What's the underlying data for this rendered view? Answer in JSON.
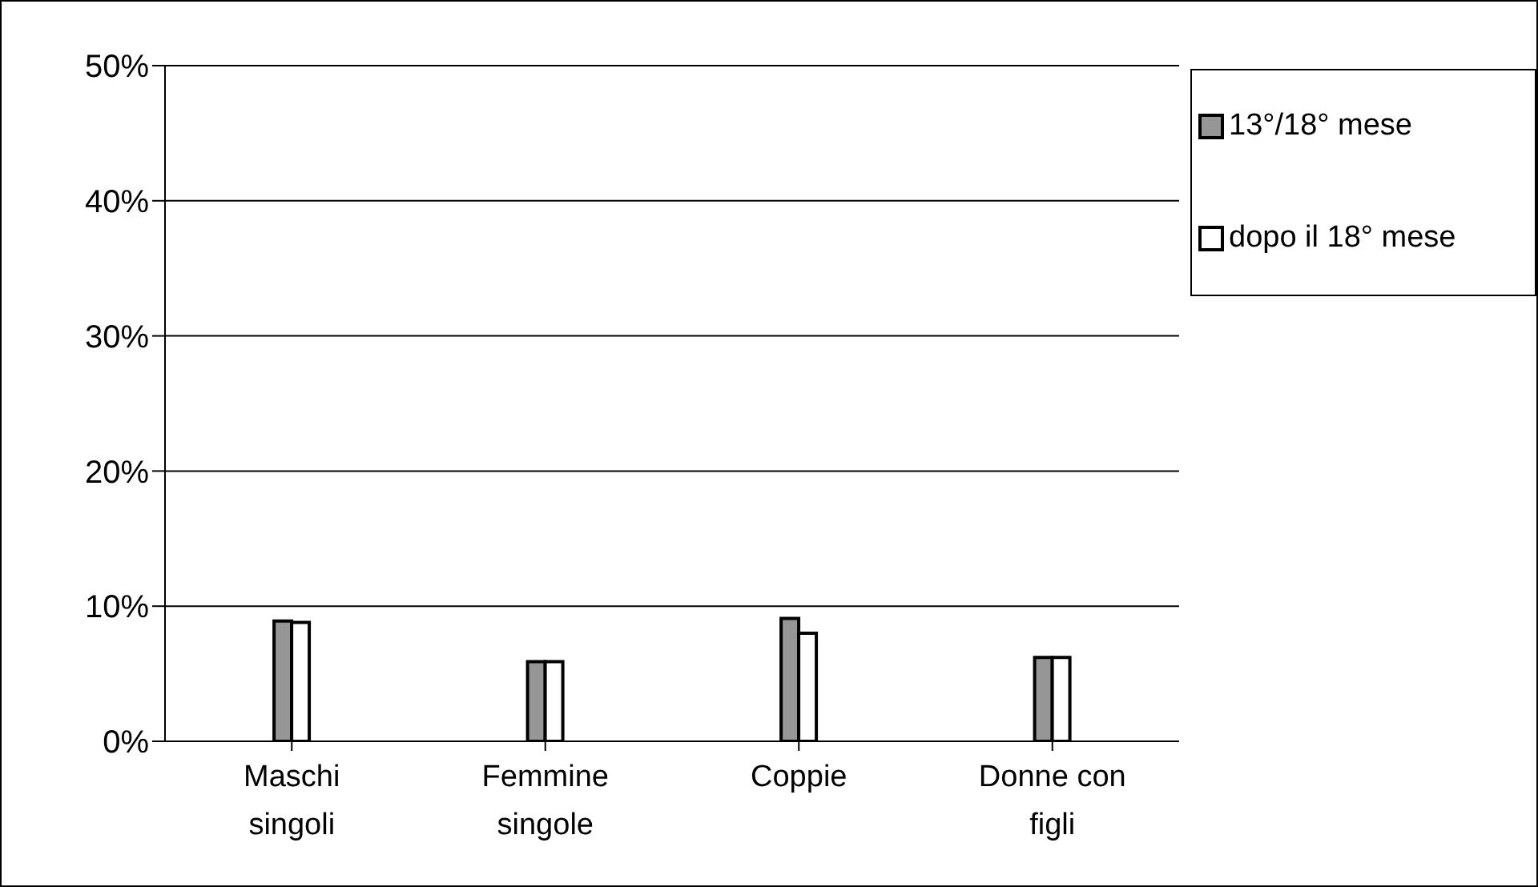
{
  "chart_data": {
    "type": "bar",
    "categories": [
      "Maschi singoli",
      "Femmine singole",
      "Coppie",
      "Donne con figli"
    ],
    "series": [
      {
        "name": "13°/18° mese",
        "color": "#969696",
        "values": [
          8.9,
          5.9,
          9.1,
          6.2
        ]
      },
      {
        "name": "dopo il 18° mese",
        "color": "#ffffff",
        "values": [
          8.8,
          5.9,
          8.0,
          6.2
        ]
      }
    ],
    "ylim": [
      0,
      50
    ],
    "yticks": [
      {
        "value": 0,
        "label": "0%"
      },
      {
        "value": 10,
        "label": "10%"
      },
      {
        "value": 20,
        "label": "20%"
      },
      {
        "value": 30,
        "label": "30%"
      },
      {
        "value": 40,
        "label": "40%"
      },
      {
        "value": 50,
        "label": "50%"
      }
    ],
    "grid": "y",
    "legend": "right"
  }
}
